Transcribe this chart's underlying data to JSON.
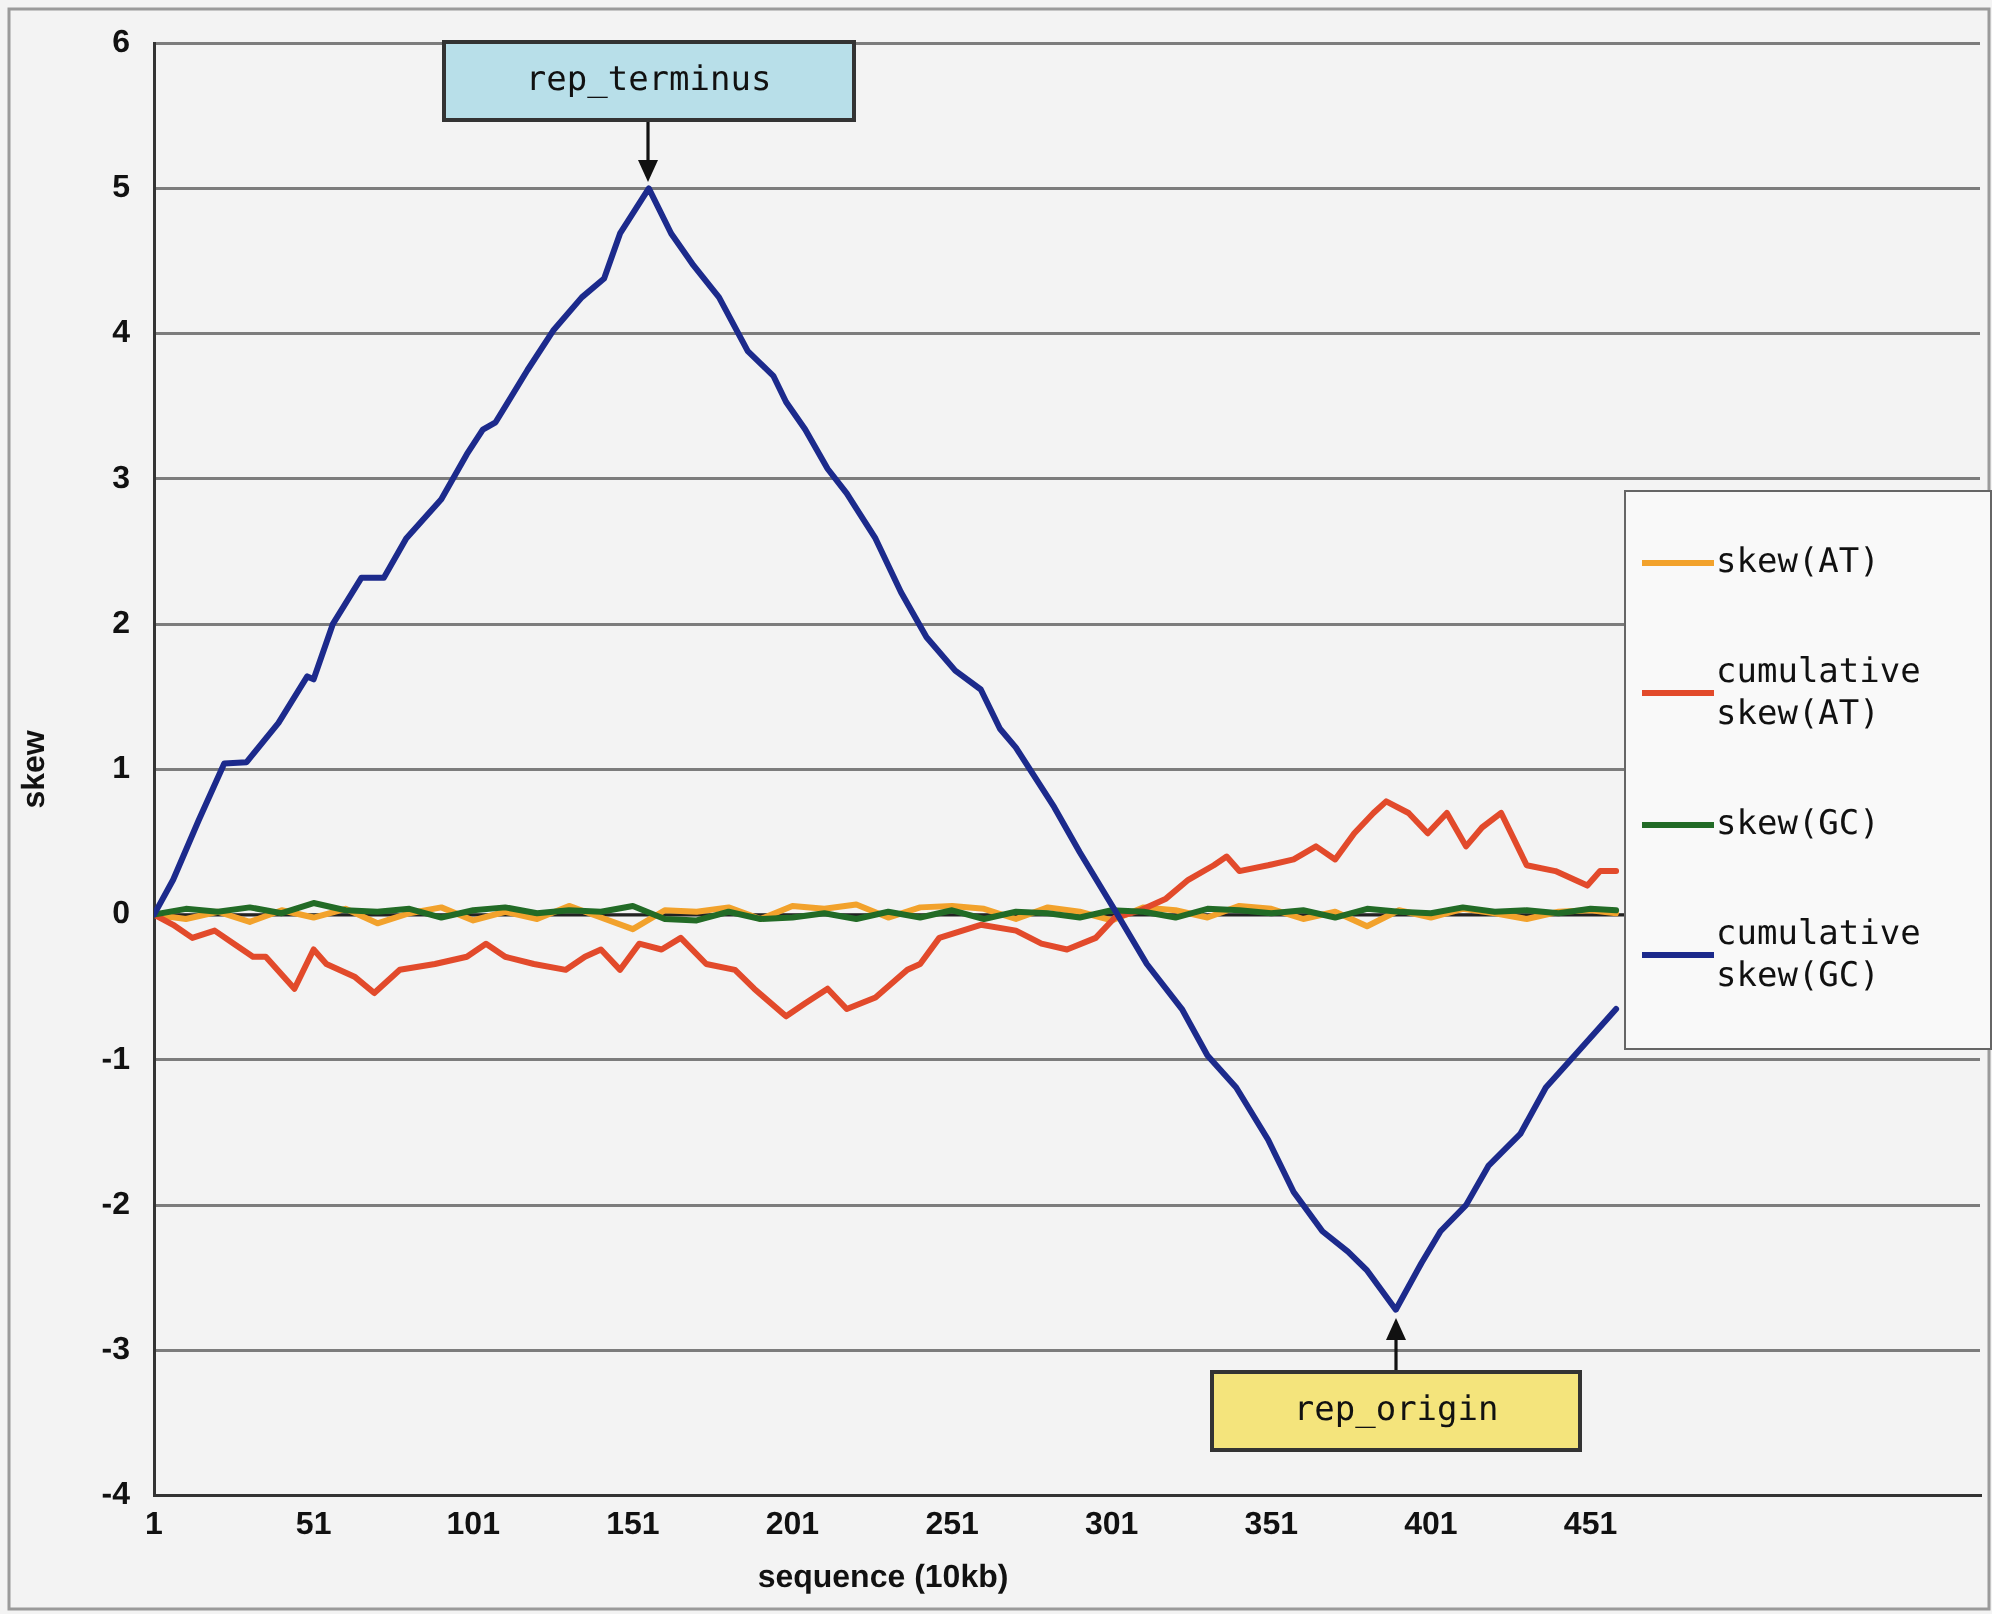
{
  "chart_data": {
    "type": "line",
    "xlabel": "sequence (10kb)",
    "ylabel": "skew",
    "xlim": [
      1,
      573
    ],
    "xticks": [
      1,
      51,
      101,
      151,
      201,
      251,
      301,
      351,
      401,
      451
    ],
    "ylim": [
      -4,
      6
    ],
    "yticks": [
      -4,
      -3,
      -2,
      -1,
      0,
      1,
      2,
      3,
      4,
      5,
      6
    ],
    "grid": "y",
    "legend": "right",
    "annotations": [
      {
        "text": "rep_terminus",
        "x": 156,
        "y": 5.0
      },
      {
        "text": "rep_origin",
        "x": 390,
        "y": -2.72
      }
    ],
    "series": [
      {
        "name": "skew(AT)",
        "color": "#f2a22c",
        "x": [
          1,
          11,
          21,
          31,
          41,
          51,
          61,
          71,
          81,
          91,
          101,
          111,
          121,
          131,
          141,
          151,
          161,
          171,
          181,
          191,
          201,
          211,
          221,
          231,
          241,
          251,
          261,
          271,
          281,
          291,
          301,
          311,
          321,
          331,
          341,
          351,
          361,
          371,
          381,
          391,
          401,
          411,
          421,
          431,
          441,
          451,
          459
        ],
        "values": [
          0,
          -0.03,
          0.02,
          -0.05,
          0.03,
          -0.02,
          0.04,
          -0.06,
          0.01,
          0.05,
          -0.04,
          0.02,
          -0.03,
          0.06,
          -0.02,
          -0.1,
          0.03,
          0.02,
          0.05,
          -0.03,
          0.06,
          0.04,
          0.07,
          -0.02,
          0.05,
          0.06,
          0.04,
          -0.03,
          0.05,
          0.02,
          -0.04,
          0.05,
          0.03,
          -0.02,
          0.06,
          0.04,
          -0.03,
          0.02,
          -0.08,
          0.03,
          -0.02,
          0.04,
          0.01,
          -0.03,
          0.02,
          0.03,
          0.01
        ]
      },
      {
        "name": "cumulative skew(AT)",
        "color": "#e24a2b",
        "x": [
          1,
          7,
          13,
          20,
          26,
          32,
          36,
          45,
          51,
          55,
          64,
          70,
          78,
          89,
          99,
          105,
          111,
          120,
          130,
          136,
          141,
          147,
          153,
          160,
          166,
          174,
          183,
          189,
          199,
          205,
          212,
          218,
          227,
          237,
          241,
          247,
          260,
          271,
          279,
          287,
          296,
          302,
          310,
          318,
          325,
          333,
          337,
          341,
          350,
          358,
          365,
          371,
          377,
          383,
          387,
          394,
          400,
          406,
          412,
          417,
          423,
          431,
          440,
          450,
          454,
          459
        ],
        "values": [
          0,
          -0.07,
          -0.16,
          -0.11,
          -0.2,
          -0.29,
          -0.29,
          -0.51,
          -0.24,
          -0.34,
          -0.43,
          -0.54,
          -0.38,
          -0.34,
          -0.29,
          -0.2,
          -0.29,
          -0.34,
          -0.38,
          -0.29,
          -0.24,
          -0.38,
          -0.2,
          -0.24,
          -0.16,
          -0.34,
          -0.38,
          -0.51,
          -0.7,
          -0.61,
          -0.51,
          -0.65,
          -0.57,
          -0.38,
          -0.34,
          -0.16,
          -0.07,
          -0.11,
          -0.2,
          -0.24,
          -0.16,
          -0.02,
          0.03,
          0.11,
          0.24,
          0.34,
          0.4,
          0.3,
          0.34,
          0.38,
          0.47,
          0.38,
          0.56,
          0.7,
          0.78,
          0.7,
          0.56,
          0.7,
          0.47,
          0.6,
          0.7,
          0.34,
          0.3,
          0.2,
          0.3,
          0.3
        ]
      },
      {
        "name": "skew(GC)",
        "color": "#226b26",
        "x": [
          1,
          11,
          21,
          31,
          41,
          51,
          61,
          71,
          81,
          91,
          101,
          111,
          121,
          131,
          141,
          151,
          161,
          171,
          181,
          191,
          201,
          211,
          221,
          231,
          241,
          251,
          261,
          271,
          281,
          291,
          301,
          311,
          321,
          331,
          341,
          351,
          361,
          371,
          381,
          391,
          401,
          411,
          421,
          431,
          441,
          451,
          459
        ],
        "values": [
          0,
          0.04,
          0.02,
          0.05,
          0.01,
          0.08,
          0.03,
          0.02,
          0.04,
          -0.02,
          0.03,
          0.05,
          0.01,
          0.03,
          0.02,
          0.06,
          -0.03,
          -0.04,
          0.02,
          -0.03,
          -0.02,
          0.01,
          -0.03,
          0.02,
          -0.02,
          0.03,
          -0.03,
          0.02,
          0.01,
          -0.02,
          0.03,
          0.02,
          -0.02,
          0.04,
          0.03,
          0.01,
          0.03,
          -0.02,
          0.04,
          0.02,
          0.01,
          0.05,
          0.02,
          0.03,
          0.01,
          0.04,
          0.03
        ]
      },
      {
        "name": "cumulative skew(GC)",
        "color": "#1c2a8c",
        "x": [
          1,
          7,
          15,
          23,
          30,
          40,
          49,
          51,
          57,
          66,
          73,
          80,
          91,
          99,
          104,
          108,
          118,
          126,
          135,
          142,
          147,
          156,
          163,
          170,
          178,
          187,
          195,
          199,
          205,
          212,
          218,
          227,
          235,
          243,
          252,
          260,
          266,
          271,
          283,
          291,
          302,
          312,
          323,
          331,
          340,
          350,
          358,
          367,
          375,
          381,
          390,
          398,
          404,
          412,
          419,
          429,
          437,
          446,
          459
        ],
        "values": [
          0,
          0.24,
          0.65,
          1.04,
          1.05,
          1.32,
          1.64,
          1.62,
          2.0,
          2.32,
          2.32,
          2.59,
          2.86,
          3.17,
          3.34,
          3.39,
          3.75,
          4.02,
          4.25,
          4.38,
          4.69,
          5.0,
          4.69,
          4.47,
          4.25,
          3.88,
          3.71,
          3.53,
          3.34,
          3.07,
          2.9,
          2.59,
          2.22,
          1.91,
          1.68,
          1.55,
          1.28,
          1.15,
          0.74,
          0.43,
          0.03,
          -0.34,
          -0.65,
          -0.97,
          -1.19,
          -1.55,
          -1.91,
          -2.18,
          -2.32,
          -2.45,
          -2.72,
          -2.4,
          -2.18,
          -2.0,
          -1.73,
          -1.51,
          -1.19,
          -0.97,
          -0.65
        ]
      }
    ]
  }
}
